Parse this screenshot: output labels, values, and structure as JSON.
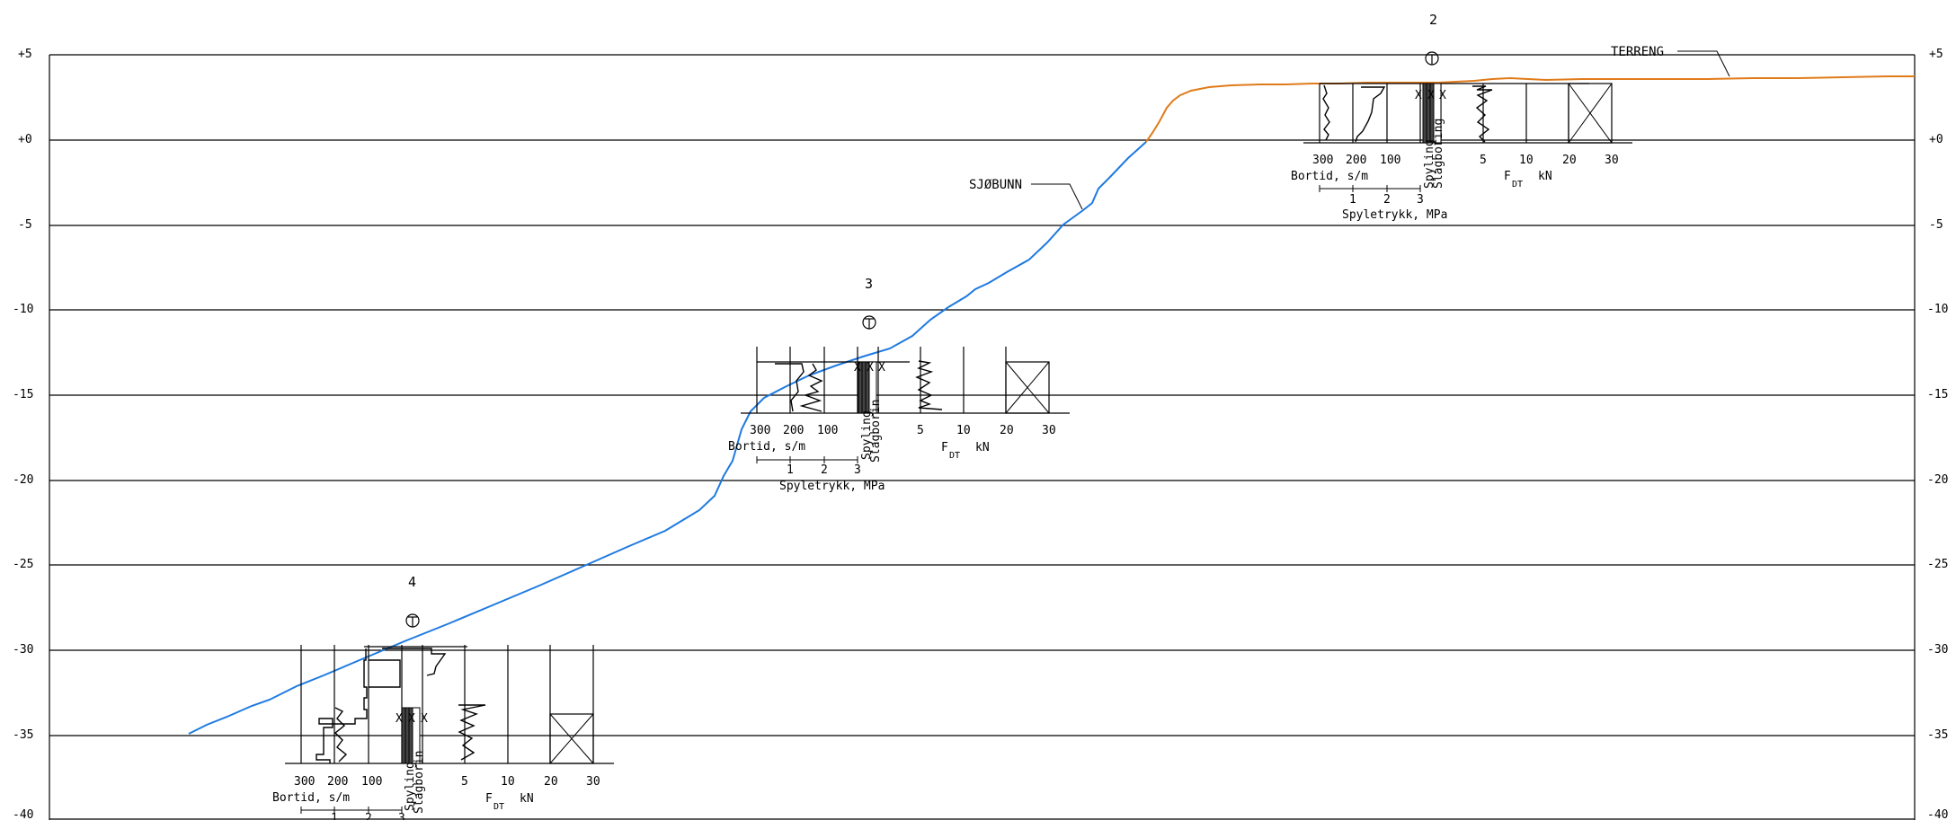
{
  "elevation_axis": {
    "ticks": [
      "+5",
      "+0",
      "-5",
      "-10",
      "-15",
      "-20",
      "-25",
      "-30",
      "-35",
      "-40"
    ],
    "values": [
      5,
      0,
      -5,
      -10,
      -15,
      -20,
      -25,
      -30,
      -35,
      -40
    ],
    "range": [
      -40,
      5
    ]
  },
  "profile_lines": {
    "terreng": {
      "label": "TERRENG",
      "color": "#e07b1a"
    },
    "sjobunn": {
      "label": "SJØBUNN",
      "color": "#1f7ae0"
    }
  },
  "boreholes": [
    {
      "number": "2",
      "top_elevation": 3.3,
      "bottom_elevation": 0.3,
      "bortid_ticks": [
        "300",
        "200",
        "100"
      ],
      "bortid_label": "Bortid, s/m",
      "spyling_label": "Spyling",
      "slagboring_label": "Slagboring",
      "fdt_ticks": [
        "5",
        "10"
      ],
      "fdt_ticks2": [
        "20",
        "30"
      ],
      "fdt_letter": "F",
      "fdt_sub": "DT",
      "fdt_unit": "kN",
      "spyletrykk_ticks": [
        "1",
        "2",
        "3"
      ],
      "spyletrykk_label": "Spyletrykk, MPa"
    },
    {
      "number": "3",
      "top_elevation": -12.2,
      "bottom_elevation": -16.0,
      "bortid_ticks": [
        "300",
        "200",
        "100"
      ],
      "bortid_label": "Bortid, s/m",
      "spyling_label": "Spyling",
      "slagboring_label": "Slagborin",
      "fdt_ticks": [
        "5",
        "10"
      ],
      "fdt_ticks2": [
        "20",
        "30"
      ],
      "fdt_letter": "F",
      "fdt_sub": "DT",
      "fdt_unit": "kN",
      "spyletrykk_ticks": [
        "1",
        "2",
        "3"
      ],
      "spyletrykk_label": "Spyletrykk, MPa"
    },
    {
      "number": "4",
      "top_elevation": -29.8,
      "bottom_elevation": -36.6,
      "bortid_ticks": [
        "300",
        "200",
        "100"
      ],
      "bortid_label": "Bortid, s/m",
      "spyling_label": "Spyling",
      "slagboring_label": "Slagborin",
      "fdt_ticks": [
        "5",
        "10"
      ],
      "fdt_ticks2": [
        "20",
        "30"
      ],
      "fdt_letter": "F",
      "fdt_sub": "DT",
      "fdt_unit": "kN",
      "spyletrykk_ticks": [
        "1",
        "2",
        "3"
      ],
      "spyletrykk_label": ""
    }
  ]
}
